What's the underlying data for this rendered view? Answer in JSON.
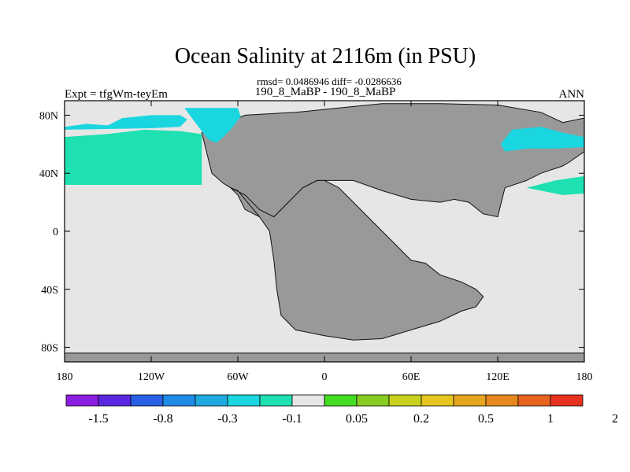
{
  "title": "Ocean Salinity at 2116m (in PSU)",
  "stats": "rmsd= 0.0486946 diff= -0.0286636",
  "subtitle_left": "Expt = tfgWm-teyEm",
  "subtitle_center": "190_8_MaBP - 190_8_MaBP",
  "subtitle_right": "ANN",
  "axes": {
    "x_ticks": [
      {
        "value": -180,
        "label": "180"
      },
      {
        "value": -120,
        "label": "120W"
      },
      {
        "value": -60,
        "label": "60W"
      },
      {
        "value": 0,
        "label": "0"
      },
      {
        "value": 60,
        "label": "60E"
      },
      {
        "value": 120,
        "label": "120E"
      },
      {
        "value": 180,
        "label": "180"
      }
    ],
    "y_ticks": [
      {
        "value": 80,
        "label": "80N"
      },
      {
        "value": 40,
        "label": "40N"
      },
      {
        "value": 0,
        "label": "0"
      },
      {
        "value": -40,
        "label": "40S"
      },
      {
        "value": -80,
        "label": "80S"
      }
    ],
    "lon_range": [
      -180,
      180
    ],
    "lat_range": [
      -90,
      90
    ]
  },
  "colors": {
    "land": "#999999",
    "neutral": "#e6e6e6",
    "teal": "#1ee0b0",
    "cyan": "#1ad6e0",
    "green": "#44dd22"
  },
  "colorbar": {
    "colors": [
      "#8c1ee0",
      "#5a28e0",
      "#2860e6",
      "#1e8ce6",
      "#1eaadf",
      "#1ad6e0",
      "#1ee0b0",
      "#e6e6e6",
      "#44dd22",
      "#88cc22",
      "#c8d21e",
      "#e6c51e",
      "#e6a51e",
      "#e6881e",
      "#e6641e",
      "#e6321e"
    ],
    "labels": [
      {
        "boundary": 1,
        "text": "-1.5"
      },
      {
        "boundary": 3,
        "text": "-0.8"
      },
      {
        "boundary": 5,
        "text": "-0.3"
      },
      {
        "boundary": 7,
        "text": "-0.1"
      },
      {
        "boundary": 9,
        "text": "0.05"
      },
      {
        "boundary": 11,
        "text": "0.2"
      },
      {
        "boundary": 13,
        "text": "0.5"
      },
      {
        "boundary": 15,
        "text": "1"
      },
      {
        "boundary": 17,
        "text": "2"
      }
    ]
  },
  "chart_data": {
    "type": "heatmap",
    "title": "Ocean Salinity at 2116m (in PSU)",
    "units": "PSU",
    "xlabel": "",
    "ylabel": "",
    "xlim": [
      -180,
      180
    ],
    "ylim": [
      -90,
      90
    ],
    "regions": [
      {
        "id": "south-polar-land",
        "class": "land",
        "lon": [
          -180,
          180,
          180,
          -180
        ],
        "lat": [
          -84,
          -84,
          -90,
          -90
        ]
      },
      {
        "id": "pangaea-north",
        "class": "land",
        "lon": [
          -85,
          -55,
          -20,
          10,
          40,
          80,
          120,
          150,
          165,
          180,
          180,
          170,
          165,
          150,
          140,
          125,
          120,
          110,
          100,
          90,
          80,
          60,
          40,
          20,
          5,
          -5,
          -15,
          -25,
          -35,
          -45,
          -55,
          -60,
          -65,
          -70,
          -78
        ],
        "lat": [
          68,
          80,
          82,
          85,
          88,
          88,
          87,
          82,
          75,
          78,
          55,
          48,
          45,
          40,
          35,
          30,
          10,
          12,
          20,
          22,
          20,
          22,
          28,
          35,
          35,
          35,
          30,
          20,
          10,
          10,
          15,
          25,
          30,
          33,
          40
        ]
      },
      {
        "id": "pangaea-south",
        "class": "land",
        "lon": [
          -65,
          -55,
          -45,
          -35,
          -25,
          -15,
          -5,
          0,
          10,
          20,
          30,
          40,
          50,
          60,
          70,
          80,
          95,
          105,
          110,
          105,
          95,
          80,
          60,
          40,
          20,
          0,
          -20,
          -30,
          -33,
          -35,
          -38,
          -45,
          -55,
          -60
        ],
        "lat": [
          30,
          25,
          15,
          10,
          20,
          30,
          35,
          35,
          30,
          20,
          10,
          0,
          -10,
          -20,
          -22,
          -30,
          -35,
          -40,
          -45,
          -52,
          -55,
          -62,
          -68,
          -74,
          -75,
          -72,
          -68,
          -58,
          -40,
          -20,
          0,
          10,
          22,
          28
        ]
      },
      {
        "id": "north-pacific-teal",
        "class": "teal",
        "lon": [
          -180,
          -85,
          -85,
          -100,
          -125,
          -150,
          -180
        ],
        "lat": [
          32,
          32,
          67,
          69,
          70,
          67,
          65
        ]
      },
      {
        "id": "arctic-cyan",
        "class": "cyan",
        "lon": [
          -97,
          -60,
          -58,
          -65,
          -70,
          -75,
          -80,
          -85
        ],
        "lat": [
          85,
          85,
          79,
          70,
          65,
          61,
          63,
          69
        ]
      },
      {
        "id": "pacific-subpolar-cyan",
        "class": "cyan",
        "lon": [
          -180,
          -165,
          -150,
          -140,
          -120,
          -100,
          -95,
          -100,
          -120,
          -180
        ],
        "lat": [
          72,
          74,
          73,
          78,
          80,
          80,
          77,
          72,
          71,
          70
        ]
      },
      {
        "id": "east-cyan",
        "class": "cyan",
        "lon": [
          122,
          130,
          150,
          165,
          175,
          180,
          180,
          160,
          140,
          125
        ],
        "lat": [
          60,
          70,
          72,
          68,
          66,
          65,
          58,
          57,
          57,
          55
        ]
      },
      {
        "id": "east-teal",
        "class": "teal",
        "lon": [
          140,
          160,
          180,
          180,
          165,
          150
        ],
        "lat": [
          30,
          35,
          38,
          26,
          25,
          28
        ]
      }
    ]
  }
}
